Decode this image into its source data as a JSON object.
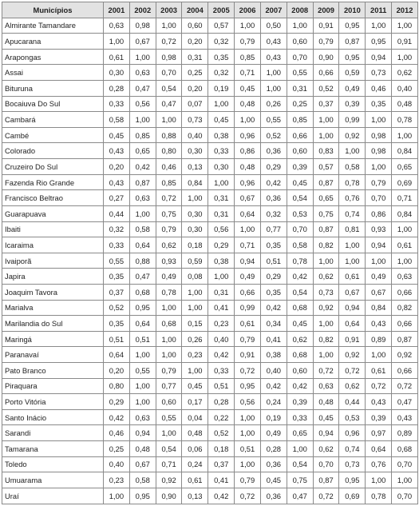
{
  "headers": [
    "Municípios",
    "2001",
    "2002",
    "2003",
    "2004",
    "2005",
    "2006",
    "2007",
    "2008",
    "2009",
    "2010",
    "2011",
    "2012"
  ],
  "rows": [
    {
      "name": "Almirante Tamandare",
      "values": [
        "0,63",
        "0,98",
        "1,00",
        "0,60",
        "0,57",
        "1,00",
        "0,50",
        "1,00",
        "0,91",
        "0,95",
        "1,00",
        "1,00"
      ]
    },
    {
      "name": "Apucarana",
      "values": [
        "1,00",
        "0,67",
        "0,72",
        "0,20",
        "0,32",
        "0,79",
        "0,43",
        "0,60",
        "0,79",
        "0,87",
        "0,95",
        "0,91"
      ]
    },
    {
      "name": "Arapongas",
      "values": [
        "0,61",
        "1,00",
        "0,98",
        "0,31",
        "0,35",
        "0,85",
        "0,43",
        "0,70",
        "0,90",
        "0,95",
        "0,94",
        "1,00"
      ]
    },
    {
      "name": "Assai",
      "values": [
        "0,30",
        "0,63",
        "0,70",
        "0,25",
        "0,32",
        "0,71",
        "1,00",
        "0,55",
        "0,66",
        "0,59",
        "0,73",
        "0,62"
      ]
    },
    {
      "name": "Bituruna",
      "values": [
        "0,28",
        "0,47",
        "0,54",
        "0,20",
        "0,19",
        "0,45",
        "1,00",
        "0,31",
        "0,52",
        "0,49",
        "0,46",
        "0,40"
      ]
    },
    {
      "name": "Bocaiuva Do Sul",
      "values": [
        "0,33",
        "0,56",
        "0,47",
        "0,07",
        "1,00",
        "0,48",
        "0,26",
        "0,25",
        "0,37",
        "0,39",
        "0,35",
        "0,48"
      ]
    },
    {
      "name": "Cambará",
      "values": [
        "0,58",
        "1,00",
        "1,00",
        "0,73",
        "0,45",
        "1,00",
        "0,55",
        "0,85",
        "1,00",
        "0,99",
        "1,00",
        "0,78"
      ]
    },
    {
      "name": "Cambé",
      "values": [
        "0,45",
        "0,85",
        "0,88",
        "0,40",
        "0,38",
        "0,96",
        "0,52",
        "0,66",
        "1,00",
        "0,92",
        "0,98",
        "1,00"
      ]
    },
    {
      "name": "Colorado",
      "values": [
        "0,43",
        "0,65",
        "0,80",
        "0,30",
        "0,33",
        "0,86",
        "0,36",
        "0,60",
        "0,83",
        "1,00",
        "0,98",
        "0,84"
      ]
    },
    {
      "name": "Cruzeiro Do Sul",
      "values": [
        "0,20",
        "0,42",
        "0,46",
        "0,13",
        "0,30",
        "0,48",
        "0,29",
        "0,39",
        "0,57",
        "0,58",
        "1,00",
        "0,65"
      ]
    },
    {
      "name": "Fazenda Rio Grande",
      "values": [
        "0,43",
        "0,87",
        "0,85",
        "0,84",
        "1,00",
        "0,96",
        "0,42",
        "0,45",
        "0,87",
        "0,78",
        "0,79",
        "0,69"
      ]
    },
    {
      "name": "Francisco Beltrao",
      "values": [
        "0,27",
        "0,63",
        "0,72",
        "1,00",
        "0,31",
        "0,67",
        "0,36",
        "0,54",
        "0,65",
        "0,76",
        "0,70",
        "0,71"
      ]
    },
    {
      "name": "Guarapuava",
      "values": [
        "0,44",
        "1,00",
        "0,75",
        "0,30",
        "0,31",
        "0,64",
        "0,32",
        "0,53",
        "0,75",
        "0,74",
        "0,86",
        "0,84"
      ]
    },
    {
      "name": "Ibaiti",
      "values": [
        "0,32",
        "0,58",
        "0,79",
        "0,30",
        "0,56",
        "1,00",
        "0,77",
        "0,70",
        "0,87",
        "0,81",
        "0,93",
        "1,00"
      ]
    },
    {
      "name": "Icaraima",
      "values": [
        "0,33",
        "0,64",
        "0,62",
        "0,18",
        "0,29",
        "0,71",
        "0,35",
        "0,58",
        "0,82",
        "1,00",
        "0,94",
        "0,61"
      ]
    },
    {
      "name": "Ivaiporã",
      "values": [
        "0,55",
        "0,88",
        "0,93",
        "0,59",
        "0,38",
        "0,94",
        "0,51",
        "0,78",
        "1,00",
        "1,00",
        "1,00",
        "1,00"
      ]
    },
    {
      "name": "Japira",
      "values": [
        "0,35",
        "0,47",
        "0,49",
        "0,08",
        "1,00",
        "0,49",
        "0,29",
        "0,42",
        "0,62",
        "0,61",
        "0,49",
        "0,63"
      ]
    },
    {
      "name": "Joaquim Tavora",
      "values": [
        "0,37",
        "0,68",
        "0,78",
        "1,00",
        "0,31",
        "0,66",
        "0,35",
        "0,54",
        "0,73",
        "0,67",
        "0,67",
        "0,66"
      ]
    },
    {
      "name": "Marialva",
      "values": [
        "0,52",
        "0,95",
        "1,00",
        "1,00",
        "0,41",
        "0,99",
        "0,42",
        "0,68",
        "0,92",
        "0,94",
        "0,84",
        "0,82"
      ]
    },
    {
      "name": "Marilandia do Sul",
      "values": [
        "0,35",
        "0,64",
        "0,68",
        "0,15",
        "0,23",
        "0,61",
        "0,34",
        "0,45",
        "1,00",
        "0,64",
        "0,43",
        "0,66"
      ]
    },
    {
      "name": "Maringá",
      "values": [
        "0,51",
        "0,51",
        "1,00",
        "0,26",
        "0,40",
        "0,79",
        "0,41",
        "0,62",
        "0,82",
        "0,91",
        "0,89",
        "0,87"
      ]
    },
    {
      "name": "Paranavaí",
      "values": [
        "0,64",
        "1,00",
        "1,00",
        "0,23",
        "0,42",
        "0,91",
        "0,38",
        "0,68",
        "1,00",
        "0,92",
        "1,00",
        "0,92"
      ]
    },
    {
      "name": "Pato Branco",
      "values": [
        "0,20",
        "0,55",
        "0,79",
        "1,00",
        "0,33",
        "0,72",
        "0,40",
        "0,60",
        "0,72",
        "0,72",
        "0,61",
        "0,66"
      ]
    },
    {
      "name": "Piraquara",
      "values": [
        "0,80",
        "1,00",
        "0,77",
        "0,45",
        "0,51",
        "0,95",
        "0,42",
        "0,42",
        "0,63",
        "0,62",
        "0,72",
        "0,72"
      ]
    },
    {
      "name": "Porto Vitória",
      "values": [
        "0,29",
        "1,00",
        "0,60",
        "0,17",
        "0,28",
        "0,56",
        "0,24",
        "0,39",
        "0,48",
        "0,44",
        "0,43",
        "0,47"
      ]
    },
    {
      "name": "Santo Inácio",
      "values": [
        "0,42",
        "0,63",
        "0,55",
        "0,04",
        "0,22",
        "1,00",
        "0,19",
        "0,33",
        "0,45",
        "0,53",
        "0,39",
        "0,43"
      ]
    },
    {
      "name": "Sarandi",
      "values": [
        "0,46",
        "0,94",
        "1,00",
        "0,48",
        "0,52",
        "1,00",
        "0,49",
        "0,65",
        "0,94",
        "0,96",
        "0,97",
        "0,89"
      ]
    },
    {
      "name": "Tamarana",
      "values": [
        "0,25",
        "0,48",
        "0,54",
        "0,06",
        "0,18",
        "0,51",
        "0,28",
        "1,00",
        "0,62",
        "0,74",
        "0,64",
        "0,68"
      ]
    },
    {
      "name": "Toledo",
      "values": [
        "0,40",
        "0,67",
        "0,71",
        "0,24",
        "0,37",
        "1,00",
        "0,36",
        "0,54",
        "0,70",
        "0,73",
        "0,76",
        "0,70"
      ]
    },
    {
      "name": "Umuarama",
      "values": [
        "0,23",
        "0,58",
        "0,92",
        "0,61",
        "0,41",
        "0,79",
        "0,45",
        "0,75",
        "0,87",
        "0,95",
        "1,00",
        "1,00"
      ]
    },
    {
      "name": "Uraí",
      "values": [
        "1,00",
        "0,95",
        "0,90",
        "0,13",
        "0,42",
        "0,72",
        "0,36",
        "0,47",
        "0,72",
        "0,69",
        "0,78",
        "0,70"
      ]
    }
  ]
}
